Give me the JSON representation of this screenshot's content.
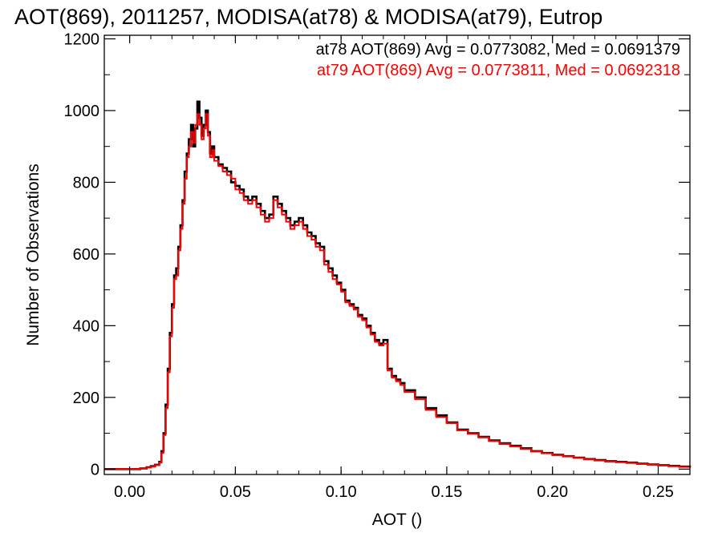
{
  "chart_data": {
    "type": "line",
    "title": "AOT(869), 2011257, MODISA(at78) & MODISA(at79), Eutrop",
    "xlabel": "AOT ()",
    "ylabel": "Number of Observations",
    "xlim": [
      -0.012,
      0.265
    ],
    "ylim": [
      -15,
      1210
    ],
    "xticks": [
      0.0,
      0.05,
      0.1,
      0.15,
      0.2,
      0.25
    ],
    "xtick_labels": [
      "0.00",
      "0.05",
      "0.10",
      "0.15",
      "0.20",
      "0.25"
    ],
    "yticks": [
      0,
      200,
      400,
      600,
      800,
      1000,
      1200
    ],
    "ytick_labels": [
      "0",
      "200",
      "400",
      "600",
      "800",
      "1000",
      "1200"
    ],
    "grid": false,
    "legend_position": "top-right",
    "series": [
      {
        "name": "at78",
        "color": "#000000",
        "stats_label": "at78 AOT(869) Avg = 0.0773082, Med = 0.0691379",
        "x": [
          -0.012,
          0.0,
          0.005,
          0.008,
          0.01,
          0.012,
          0.014,
          0.015,
          0.016,
          0.017,
          0.018,
          0.019,
          0.02,
          0.021,
          0.022,
          0.023,
          0.024,
          0.025,
          0.026,
          0.027,
          0.028,
          0.029,
          0.03,
          0.031,
          0.032,
          0.033,
          0.034,
          0.035,
          0.036,
          0.037,
          0.038,
          0.039,
          0.04,
          0.042,
          0.044,
          0.046,
          0.048,
          0.05,
          0.052,
          0.054,
          0.056,
          0.058,
          0.06,
          0.062,
          0.064,
          0.066,
          0.068,
          0.07,
          0.072,
          0.074,
          0.076,
          0.078,
          0.08,
          0.082,
          0.084,
          0.086,
          0.088,
          0.09,
          0.092,
          0.094,
          0.096,
          0.098,
          0.1,
          0.102,
          0.104,
          0.106,
          0.108,
          0.11,
          0.112,
          0.114,
          0.116,
          0.118,
          0.12,
          0.122,
          0.124,
          0.126,
          0.128,
          0.13,
          0.135,
          0.14,
          0.145,
          0.15,
          0.155,
          0.16,
          0.165,
          0.17,
          0.175,
          0.18,
          0.185,
          0.19,
          0.195,
          0.2,
          0.205,
          0.21,
          0.215,
          0.22,
          0.225,
          0.23,
          0.235,
          0.24,
          0.245,
          0.25,
          0.255,
          0.26,
          0.265
        ],
        "y": [
          0,
          0,
          2,
          5,
          8,
          12,
          20,
          50,
          100,
          180,
          280,
          380,
          460,
          540,
          560,
          620,
          680,
          750,
          830,
          880,
          920,
          960,
          900,
          950,
          1025,
          980,
          930,
          960,
          1000,
          940,
          880,
          900,
          870,
          850,
          840,
          830,
          800,
          790,
          780,
          760,
          750,
          760,
          740,
          720,
          700,
          710,
          760,
          740,
          720,
          700,
          680,
          690,
          700,
          680,
          660,
          650,
          630,
          620,
          580,
          560,
          540,
          520,
          500,
          470,
          460,
          450,
          430,
          420,
          400,
          380,
          360,
          350,
          360,
          280,
          260,
          250,
          240,
          220,
          200,
          170,
          150,
          130,
          110,
          100,
          90,
          80,
          72,
          65,
          58,
          50,
          45,
          40,
          36,
          32,
          28,
          25,
          22,
          20,
          18,
          15,
          13,
          11,
          9,
          7,
          5
        ]
      },
      {
        "name": "at79",
        "color": "#ff0000",
        "stats_label": "at79 AOT(869) Avg = 0.0773811, Med = 0.0692318",
        "x": [
          -0.012,
          0.0,
          0.005,
          0.008,
          0.01,
          0.012,
          0.014,
          0.015,
          0.016,
          0.017,
          0.018,
          0.019,
          0.02,
          0.021,
          0.022,
          0.023,
          0.024,
          0.025,
          0.026,
          0.027,
          0.028,
          0.029,
          0.03,
          0.031,
          0.032,
          0.033,
          0.034,
          0.035,
          0.036,
          0.037,
          0.038,
          0.039,
          0.04,
          0.042,
          0.044,
          0.046,
          0.048,
          0.05,
          0.052,
          0.054,
          0.056,
          0.058,
          0.06,
          0.062,
          0.064,
          0.066,
          0.068,
          0.07,
          0.072,
          0.074,
          0.076,
          0.078,
          0.08,
          0.082,
          0.084,
          0.086,
          0.088,
          0.09,
          0.092,
          0.094,
          0.096,
          0.098,
          0.1,
          0.102,
          0.104,
          0.106,
          0.108,
          0.11,
          0.112,
          0.114,
          0.116,
          0.118,
          0.12,
          0.122,
          0.124,
          0.126,
          0.128,
          0.13,
          0.135,
          0.14,
          0.145,
          0.15,
          0.155,
          0.16,
          0.165,
          0.17,
          0.175,
          0.18,
          0.185,
          0.19,
          0.195,
          0.2,
          0.205,
          0.21,
          0.215,
          0.22,
          0.225,
          0.23,
          0.235,
          0.24,
          0.245,
          0.25,
          0.255,
          0.26,
          0.265
        ],
        "y": [
          0,
          0,
          2,
          4,
          7,
          11,
          18,
          45,
          95,
          170,
          270,
          370,
          450,
          530,
          540,
          610,
          670,
          740,
          810,
          870,
          900,
          940,
          910,
          960,
          990,
          960,
          920,
          950,
          990,
          930,
          870,
          890,
          860,
          845,
          830,
          820,
          810,
          780,
          770,
          750,
          740,
          750,
          730,
          710,
          690,
          700,
          750,
          730,
          710,
          690,
          670,
          680,
          690,
          670,
          650,
          640,
          620,
          610,
          570,
          550,
          530,
          515,
          495,
          465,
          455,
          445,
          425,
          415,
          395,
          375,
          355,
          345,
          350,
          275,
          255,
          245,
          235,
          215,
          195,
          165,
          145,
          128,
          108,
          98,
          88,
          78,
          70,
          63,
          56,
          49,
          44,
          39,
          35,
          31,
          27,
          24,
          21,
          19,
          17,
          14,
          12,
          10,
          8,
          6,
          4
        ]
      }
    ]
  }
}
